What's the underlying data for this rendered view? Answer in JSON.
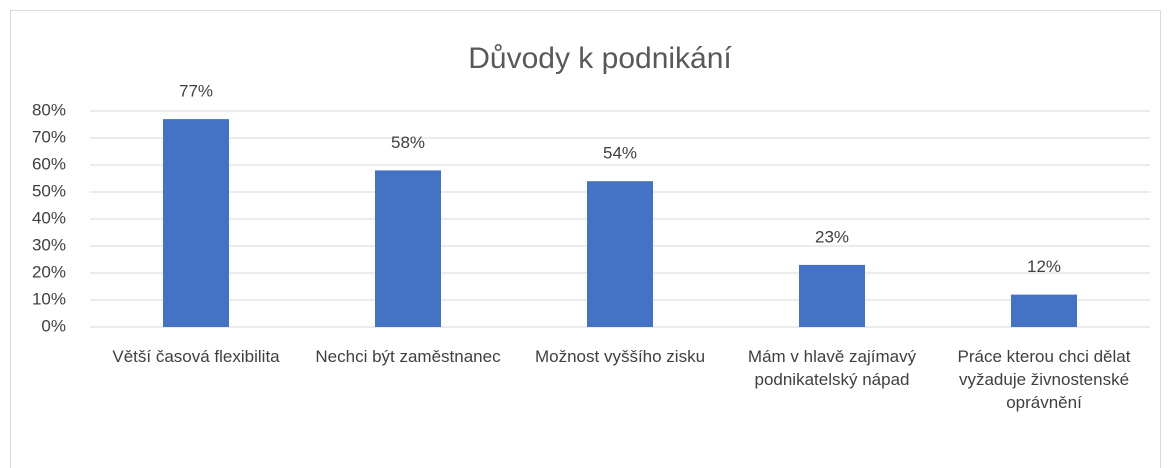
{
  "chart_data": {
    "type": "bar",
    "title": "Důvody k podnikání",
    "categories": [
      "Větší časová flexibilita",
      "Nechci být zaměstnanec",
      "Možnost vyššího zisku",
      "Mám v hlavě zajímavý podnikatelský nápad",
      "Práce kterou chci dělat vyžaduje živnostenské oprávnění"
    ],
    "values": [
      77,
      58,
      54,
      23,
      12
    ],
    "value_labels": [
      "77%",
      "58%",
      "54%",
      "23%",
      "12%"
    ],
    "color": "#4472c4",
    "ylim": [
      0,
      80
    ],
    "yticks": [
      {
        "value": 0,
        "label": "0%"
      },
      {
        "value": 10,
        "label": "10%"
      },
      {
        "value": 20,
        "label": "20%"
      },
      {
        "value": 30,
        "label": "30%"
      },
      {
        "value": 40,
        "label": "40%"
      },
      {
        "value": 50,
        "label": "50%"
      },
      {
        "value": 60,
        "label": "60%"
      },
      {
        "value": 70,
        "label": "70%"
      },
      {
        "value": 80,
        "label": "80%"
      }
    ],
    "grid": true
  }
}
